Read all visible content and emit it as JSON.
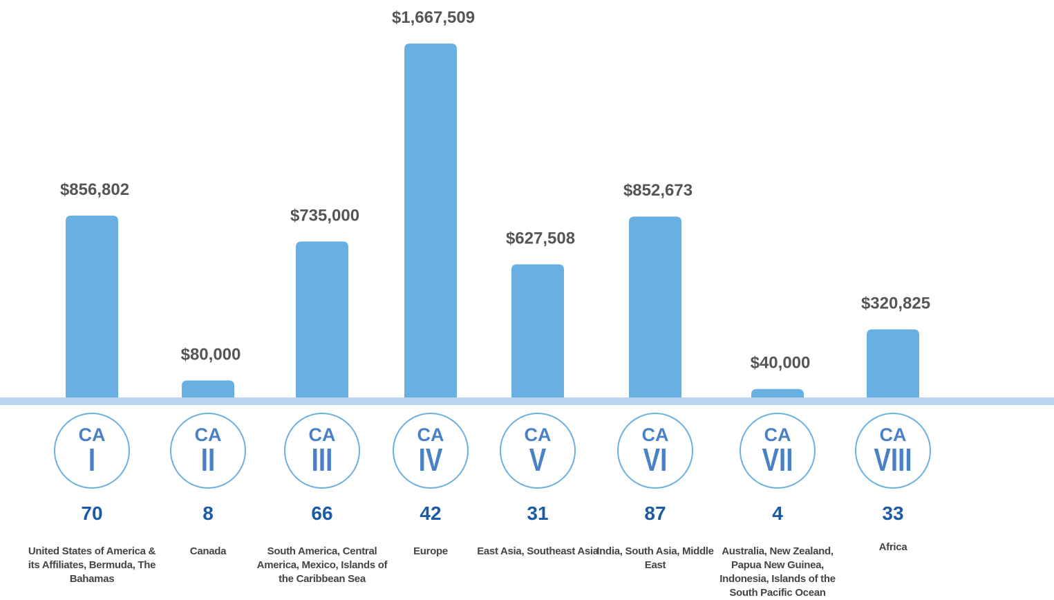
{
  "chart_data": {
    "type": "bar",
    "values": [
      856802,
      80000,
      735000,
      1667509,
      627508,
      852673,
      40000,
      320825
    ],
    "value_labels": [
      "$856,802",
      "$80,000",
      "$735,000",
      "$1,667,509",
      "$627,508",
      "$852,673",
      "$40,000",
      "$320,825"
    ],
    "color": "#68b0e1",
    "zones": [
      {
        "prefix": "CA",
        "numeral": "I",
        "count": 70,
        "region": "United States of America & its Affiliates, Bermuda, The Bahamas"
      },
      {
        "prefix": "CA",
        "numeral": "II",
        "count": 8,
        "region": "Canada"
      },
      {
        "prefix": "CA",
        "numeral": "III",
        "count": 66,
        "region": "South America, Central America, Mexico, Islands of the Caribbean Sea"
      },
      {
        "prefix": "CA",
        "numeral": "IV",
        "count": 42,
        "region": "Europe"
      },
      {
        "prefix": "CA",
        "numeral": "V",
        "count": 31,
        "region": "East Asia, Southeast Asia"
      },
      {
        "prefix": "CA",
        "numeral": "VI",
        "count": 87,
        "region": "India, South Asia, Middle East"
      },
      {
        "prefix": "CA",
        "numeral": "VII",
        "count": 4,
        "region": "Australia, New Zealand, Papua New Guinea, Indonesia, Islands of the South Pacific Ocean"
      },
      {
        "prefix": "CA",
        "numeral": "VIII",
        "count": 33,
        "region": "Africa"
      }
    ]
  }
}
